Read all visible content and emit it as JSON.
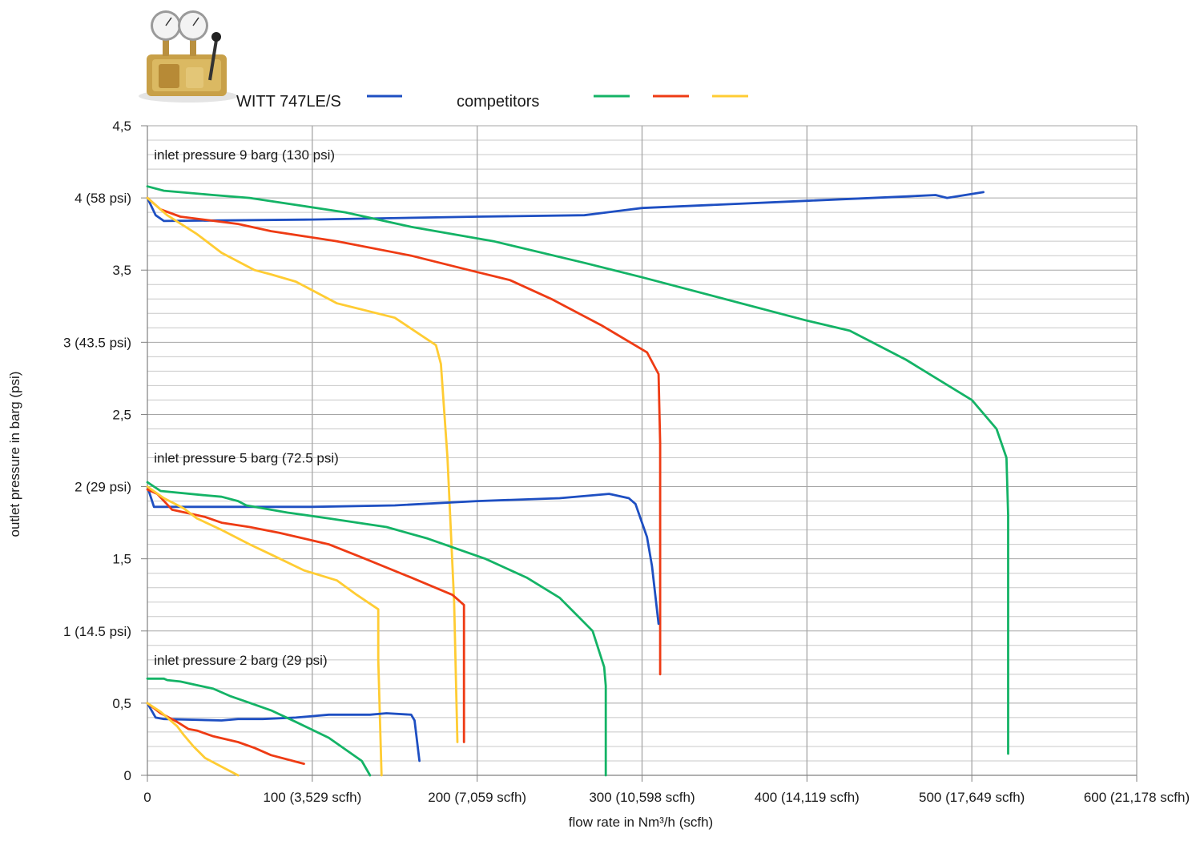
{
  "legend": {
    "product_label": "WITT 747LE/S",
    "competitors_label": "competitors"
  },
  "colors": {
    "witt": "#1e4fc2",
    "green": "#14b366",
    "red": "#ee3b14",
    "yellow": "#ffcc33",
    "grid_major": "#a6a6a6",
    "grid_minor": "#c8c8c8"
  },
  "product_image": {
    "icon": "pressure-regulator-with-two-gauges"
  },
  "chart_data": {
    "type": "line",
    "xlabel": "flow rate in Nm³/h (scfh)",
    "ylabel": "outlet pressure in barg (psi)",
    "xlim": [
      0,
      600
    ],
    "ylim": [
      0,
      4.5
    ],
    "grid": true,
    "legend_position": "top",
    "x_ticks": [
      {
        "value": 0,
        "label": "0"
      },
      {
        "value": 100,
        "label": "100 (3,529 scfh)"
      },
      {
        "value": 200,
        "label": "200 (7,059 scfh)"
      },
      {
        "value": 300,
        "label": "300 (10,598 scfh)"
      },
      {
        "value": 400,
        "label": "400 (14,119 scfh)"
      },
      {
        "value": 500,
        "label": "500 (17,649 scfh)"
      },
      {
        "value": 600,
        "label": "600 (21,178 scfh)"
      }
    ],
    "y_ticks": [
      {
        "value": 0,
        "label": "0"
      },
      {
        "value": 0.5,
        "label": "0,5"
      },
      {
        "value": 1,
        "label": "1 (14.5 psi)"
      },
      {
        "value": 1.5,
        "label": "1,5"
      },
      {
        "value": 2,
        "label": "2 (29 psi)"
      },
      {
        "value": 2.5,
        "label": "2,5"
      },
      {
        "value": 3,
        "label": "3 (43.5 psi)"
      },
      {
        "value": 3.5,
        "label": "3,5"
      },
      {
        "value": 4,
        "label": "4 (58 psi)"
      },
      {
        "value": 4.5,
        "label": "4,5"
      }
    ],
    "annotations": [
      {
        "text": "inlet pressure 9 barg (130 psi)",
        "x": 4,
        "y": 4.3
      },
      {
        "text": "inlet pressure 5 barg (72.5 psi)",
        "x": 4,
        "y": 2.2
      },
      {
        "text": "inlet pressure 2 barg (29 psi)",
        "x": 4,
        "y": 0.8
      }
    ],
    "series": [
      {
        "group": "9 barg",
        "color_key": "witt",
        "points": [
          [
            0,
            4.0
          ],
          [
            5,
            3.88
          ],
          [
            10,
            3.84
          ],
          [
            100,
            3.85
          ],
          [
            200,
            3.87
          ],
          [
            265,
            3.88
          ],
          [
            300,
            3.93
          ],
          [
            400,
            3.98
          ],
          [
            460,
            4.01
          ],
          [
            478,
            4.02
          ],
          [
            485,
            4.0
          ],
          [
            507,
            4.04
          ]
        ]
      },
      {
        "group": "9 barg",
        "color_key": "green",
        "points": [
          [
            0,
            4.08
          ],
          [
            10,
            4.05
          ],
          [
            40,
            4.02
          ],
          [
            62,
            4.0
          ],
          [
            120,
            3.9
          ],
          [
            160,
            3.8
          ],
          [
            210,
            3.7
          ],
          [
            265,
            3.55
          ],
          [
            300,
            3.45
          ],
          [
            400,
            3.15
          ],
          [
            426,
            3.08
          ],
          [
            460,
            2.88
          ],
          [
            500,
            2.6
          ],
          [
            515,
            2.4
          ],
          [
            521,
            2.2
          ],
          [
            522,
            1.8
          ],
          [
            522,
            0.7
          ],
          [
            522,
            0.15
          ]
        ]
      },
      {
        "group": "9 barg",
        "color_key": "red",
        "points": [
          [
            0,
            4.0
          ],
          [
            8,
            3.92
          ],
          [
            20,
            3.87
          ],
          [
            55,
            3.82
          ],
          [
            75,
            3.77
          ],
          [
            115,
            3.7
          ],
          [
            160,
            3.6
          ],
          [
            195,
            3.5
          ],
          [
            220,
            3.43
          ],
          [
            245,
            3.3
          ],
          [
            275,
            3.12
          ],
          [
            303,
            2.93
          ],
          [
            310,
            2.78
          ],
          [
            311,
            2.3
          ],
          [
            311,
            1.5
          ],
          [
            311,
            0.7
          ]
        ]
      },
      {
        "group": "9 barg",
        "color_key": "yellow",
        "points": [
          [
            0,
            4.0
          ],
          [
            12,
            3.88
          ],
          [
            30,
            3.75
          ],
          [
            45,
            3.62
          ],
          [
            65,
            3.5
          ],
          [
            75,
            3.47
          ],
          [
            90,
            3.42
          ],
          [
            115,
            3.27
          ],
          [
            150,
            3.17
          ],
          [
            175,
            2.98
          ],
          [
            178,
            2.85
          ],
          [
            182,
            2.2
          ],
          [
            186,
            1.2
          ],
          [
            188,
            0.23
          ]
        ]
      },
      {
        "group": "5 barg",
        "color_key": "witt",
        "points": [
          [
            0,
            2.0
          ],
          [
            4,
            1.86
          ],
          [
            10,
            1.86
          ],
          [
            100,
            1.86
          ],
          [
            150,
            1.87
          ],
          [
            200,
            1.9
          ],
          [
            250,
            1.92
          ],
          [
            280,
            1.95
          ],
          [
            292,
            1.92
          ],
          [
            296,
            1.88
          ],
          [
            303,
            1.65
          ],
          [
            306,
            1.45
          ],
          [
            308,
            1.25
          ],
          [
            310,
            1.05
          ]
        ]
      },
      {
        "group": "5 barg",
        "color_key": "green",
        "points": [
          [
            0,
            2.03
          ],
          [
            8,
            1.97
          ],
          [
            35,
            1.94
          ],
          [
            45,
            1.93
          ],
          [
            55,
            1.9
          ],
          [
            60,
            1.87
          ],
          [
            85,
            1.82
          ],
          [
            110,
            1.78
          ],
          [
            145,
            1.72
          ],
          [
            170,
            1.64
          ],
          [
            205,
            1.5
          ],
          [
            230,
            1.37
          ],
          [
            250,
            1.23
          ],
          [
            270,
            1.0
          ],
          [
            277,
            0.75
          ],
          [
            278,
            0.62
          ],
          [
            278,
            0.2
          ],
          [
            278,
            0
          ]
        ]
      },
      {
        "group": "5 barg",
        "color_key": "red",
        "points": [
          [
            0,
            1.98
          ],
          [
            6,
            1.95
          ],
          [
            15,
            1.84
          ],
          [
            35,
            1.79
          ],
          [
            45,
            1.75
          ],
          [
            62,
            1.72
          ],
          [
            80,
            1.68
          ],
          [
            110,
            1.6
          ],
          [
            130,
            1.51
          ],
          [
            160,
            1.37
          ],
          [
            185,
            1.25
          ],
          [
            192,
            1.18
          ],
          [
            192,
            0.8
          ],
          [
            192,
            0.23
          ]
        ]
      },
      {
        "group": "5 barg",
        "color_key": "yellow",
        "points": [
          [
            0,
            2.0
          ],
          [
            10,
            1.92
          ],
          [
            22,
            1.85
          ],
          [
            30,
            1.78
          ],
          [
            45,
            1.7
          ],
          [
            62,
            1.6
          ],
          [
            75,
            1.53
          ],
          [
            95,
            1.42
          ],
          [
            115,
            1.35
          ],
          [
            127,
            1.25
          ],
          [
            140,
            1.15
          ],
          [
            140,
            0.8
          ],
          [
            142,
            0
          ]
        ]
      },
      {
        "group": "2 barg",
        "color_key": "witt",
        "points": [
          [
            0,
            0.5
          ],
          [
            5,
            0.4
          ],
          [
            10,
            0.39
          ],
          [
            45,
            0.38
          ],
          [
            55,
            0.39
          ],
          [
            70,
            0.39
          ],
          [
            90,
            0.4
          ],
          [
            100,
            0.41
          ],
          [
            110,
            0.42
          ],
          [
            135,
            0.42
          ],
          [
            145,
            0.43
          ],
          [
            160,
            0.42
          ],
          [
            162,
            0.38
          ],
          [
            165,
            0.1
          ]
        ]
      },
      {
        "group": "2 barg",
        "color_key": "green",
        "points": [
          [
            0,
            0.67
          ],
          [
            10,
            0.67
          ],
          [
            12,
            0.66
          ],
          [
            20,
            0.65
          ],
          [
            28,
            0.63
          ],
          [
            40,
            0.6
          ],
          [
            50,
            0.55
          ],
          [
            60,
            0.51
          ],
          [
            75,
            0.45
          ],
          [
            90,
            0.37
          ],
          [
            110,
            0.26
          ],
          [
            130,
            0.1
          ],
          [
            135,
            0
          ]
        ]
      },
      {
        "group": "2 barg",
        "color_key": "red",
        "points": [
          [
            0,
            0.5
          ],
          [
            8,
            0.43
          ],
          [
            18,
            0.37
          ],
          [
            25,
            0.32
          ],
          [
            30,
            0.31
          ],
          [
            40,
            0.27
          ],
          [
            55,
            0.23
          ],
          [
            65,
            0.19
          ],
          [
            75,
            0.14
          ],
          [
            95,
            0.08
          ]
        ]
      },
      {
        "group": "2 barg",
        "color_key": "yellow",
        "points": [
          [
            0,
            0.5
          ],
          [
            8,
            0.44
          ],
          [
            18,
            0.34
          ],
          [
            22,
            0.28
          ],
          [
            28,
            0.2
          ],
          [
            35,
            0.12
          ],
          [
            45,
            0.06
          ],
          [
            55,
            0
          ]
        ]
      }
    ]
  }
}
